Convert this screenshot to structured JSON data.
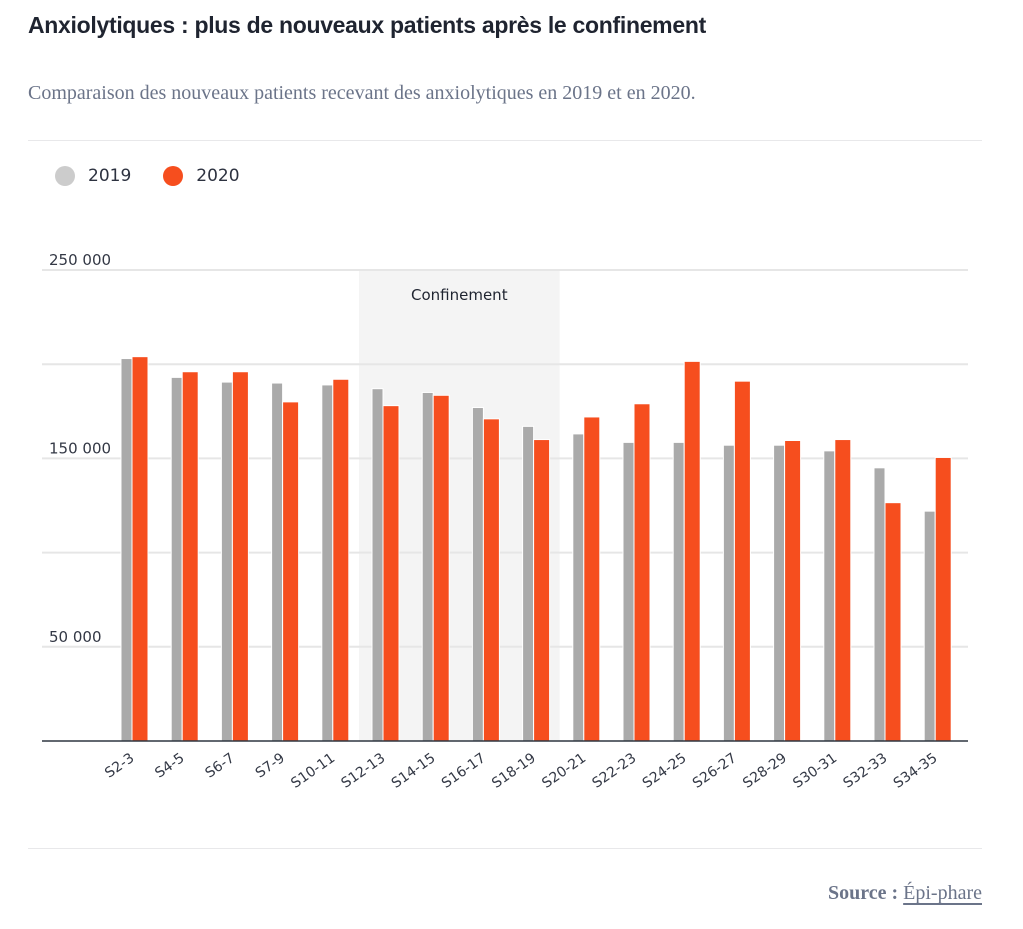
{
  "header": {
    "title": "Anxiolytiques : plus de nouveaux patients après le confinement",
    "subtitle": "Comparaison des nouveaux patients recevant des anxiolytiques en 2019 et en 2020."
  },
  "legend": [
    {
      "label": "2019",
      "color": "#cccccc"
    },
    {
      "label": "2020",
      "color": "#f64e1e"
    }
  ],
  "footer": {
    "source_label": "Source :",
    "source_link": "Épi-phare"
  },
  "chart_data": {
    "type": "bar",
    "title": "Anxiolytiques : plus de nouveaux patients après le confinement",
    "subtitle": "Comparaison des nouveaux patients recevant des anxiolytiques en 2019 et en 2020.",
    "xlabel": "",
    "ylabel": "",
    "ylim": [
      0,
      250000
    ],
    "y_ticks": [
      0,
      50000,
      100000,
      150000,
      200000,
      250000
    ],
    "y_tick_labels": [
      {
        "value": 250000,
        "label": "250 000"
      },
      {
        "value": 150000,
        "label": "150 000"
      },
      {
        "value": 50000,
        "label": "50 000"
      }
    ],
    "grid": true,
    "legend_position": "top-left",
    "categories": [
      "S2-3",
      "S4-5",
      "S6-7",
      "S7-9",
      "S10-11",
      "S12-13",
      "S14-15",
      "S16-17",
      "S18-19",
      "S20-21",
      "S22-23",
      "S24-25",
      "S26-27",
      "S28-29",
      "S30-31",
      "S32-33",
      "S34-35"
    ],
    "series": [
      {
        "name": "2019",
        "color": "#aaaaaa",
        "values": [
          203000,
          193000,
          190500,
          190000,
          189000,
          187000,
          185000,
          177000,
          167000,
          163000,
          158500,
          158500,
          157000,
          157000,
          154000,
          145000,
          122000
        ]
      },
      {
        "name": "2020",
        "color": "#f64e1e",
        "values": [
          204000,
          196000,
          196000,
          180000,
          192000,
          178000,
          183500,
          171000,
          160000,
          172000,
          179000,
          201500,
          191000,
          159500,
          160000,
          126500,
          150500
        ]
      }
    ],
    "annotations": [
      {
        "type": "band",
        "label": "Confinement",
        "from_category": "S12-13",
        "to_category": "S18-19"
      }
    ]
  }
}
